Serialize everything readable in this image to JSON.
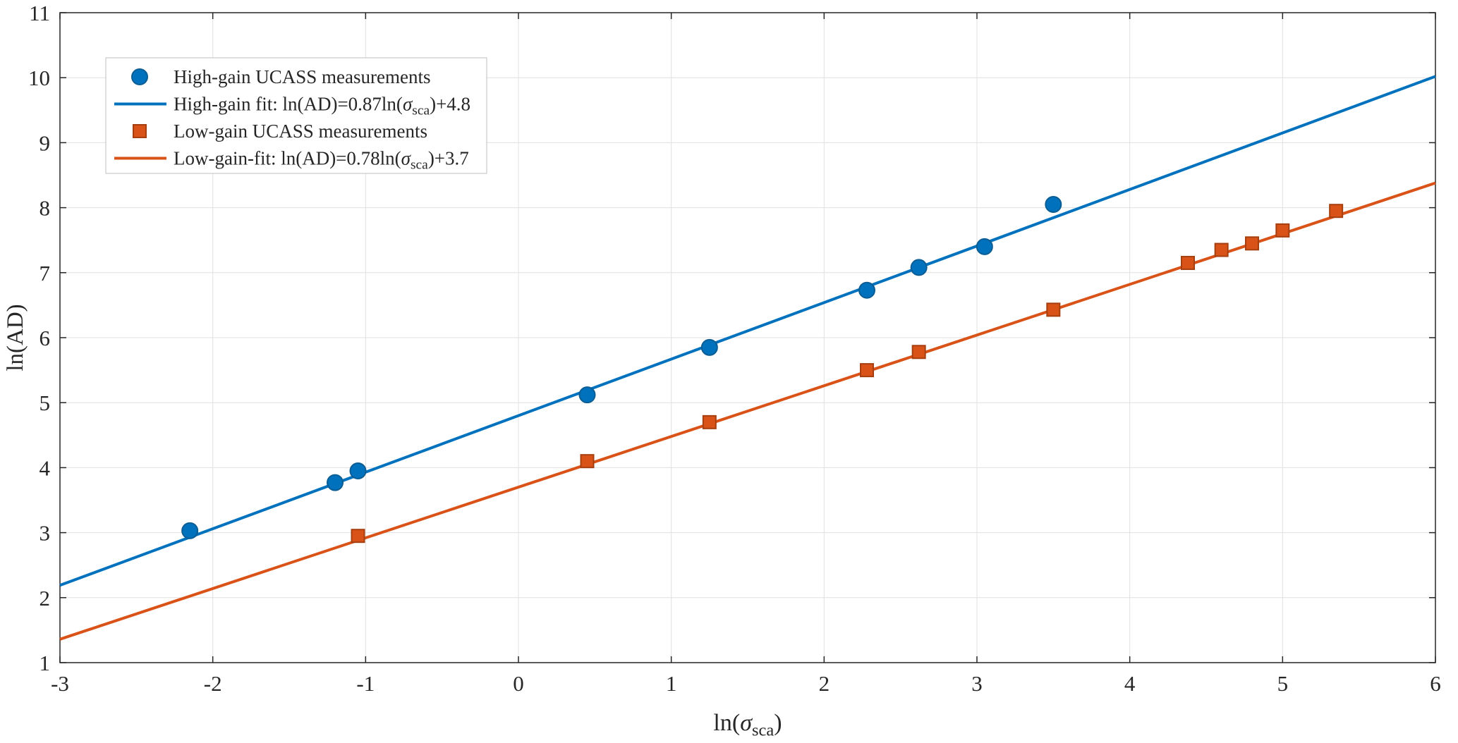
{
  "chart_data": {
    "type": "scatter",
    "title": "",
    "xlabel_rich": [
      {
        "text": "ln("
      },
      {
        "text": "σ",
        "italic": true
      },
      {
        "text": "sca",
        "sub": true
      },
      {
        "text": ")"
      }
    ],
    "ylabel": "ln(AD)",
    "xlim": [
      -3,
      6
    ],
    "ylim": [
      1,
      11
    ],
    "xticks": [
      -3,
      -2,
      -1,
      0,
      1,
      2,
      3,
      4,
      5,
      6
    ],
    "xtick_labels": [
      "-3",
      "-2",
      "-1",
      "0",
      "1",
      "2",
      "3",
      "4",
      "5",
      "6"
    ],
    "yticks": [
      1,
      2,
      3,
      4,
      5,
      6,
      7,
      8,
      9,
      10,
      11
    ],
    "ytick_labels": [
      "1",
      "2",
      "3",
      "4",
      "5",
      "6",
      "7",
      "8",
      "9",
      "10",
      "11"
    ],
    "grid": true,
    "legend_position": "top-left",
    "style": {
      "axis_color": "#262626",
      "grid_color": "#E0E0E0",
      "text_color": "#262626",
      "background": "#FFFFFF",
      "legend_border": "#BFBFBF",
      "high_gain_color": "#0072BD",
      "low_gain_color": "#D95319"
    },
    "series": [
      {
        "name": "High-gain fit",
        "kind": "line",
        "color": "#0072BD",
        "fit": {
          "slope": 0.87,
          "intercept": 4.8
        }
      },
      {
        "name": "Low-gain fit",
        "kind": "line",
        "color": "#D95319",
        "fit": {
          "slope": 0.78,
          "intercept": 3.7
        }
      },
      {
        "name": "High-gain UCASS measurements",
        "kind": "scatter",
        "marker": "circle",
        "color": "#0072BD",
        "edge": "#0B5D94",
        "points": [
          [
            -2.15,
            3.03
          ],
          [
            -1.2,
            3.77
          ],
          [
            -1.05,
            3.95
          ],
          [
            0.45,
            5.12
          ],
          [
            1.25,
            5.85
          ],
          [
            2.28,
            6.73
          ],
          [
            2.62,
            7.08
          ],
          [
            3.05,
            7.4
          ],
          [
            3.5,
            8.05
          ]
        ]
      },
      {
        "name": "Low-gain UCASS measurements",
        "kind": "scatter",
        "marker": "square",
        "color": "#D95319",
        "edge": "#A63F10",
        "points": [
          [
            -1.05,
            2.95
          ],
          [
            0.45,
            4.1
          ],
          [
            1.25,
            4.7
          ],
          [
            2.28,
            5.5
          ],
          [
            2.62,
            5.78
          ],
          [
            3.5,
            6.43
          ],
          [
            4.38,
            7.15
          ],
          [
            4.6,
            7.35
          ],
          [
            4.8,
            7.45
          ],
          [
            5.0,
            7.65
          ],
          [
            5.35,
            7.95
          ]
        ]
      }
    ],
    "legend": [
      {
        "sample": "marker",
        "marker": "circle",
        "color": "#0072BD",
        "edge": "#0B5D94",
        "label": [
          {
            "text": "High-gain UCASS measurements"
          }
        ]
      },
      {
        "sample": "line",
        "color": "#0072BD",
        "label": [
          {
            "text": "High-gain fit: ln(AD)=0.87ln("
          },
          {
            "text": "σ",
            "italic": true
          },
          {
            "text": "sca",
            "sub": true
          },
          {
            "text": ")+4.8"
          }
        ]
      },
      {
        "sample": "marker",
        "marker": "square",
        "color": "#D95319",
        "edge": "#A63F10",
        "label": [
          {
            "text": "Low-gain UCASS measurements"
          }
        ]
      },
      {
        "sample": "line",
        "color": "#D95319",
        "label": [
          {
            "text": "Low-gain-fit: ln(AD)=0.78ln("
          },
          {
            "text": "σ",
            "italic": true
          },
          {
            "text": "sca",
            "sub": true
          },
          {
            "text": ")+3.7"
          }
        ]
      }
    ]
  }
}
